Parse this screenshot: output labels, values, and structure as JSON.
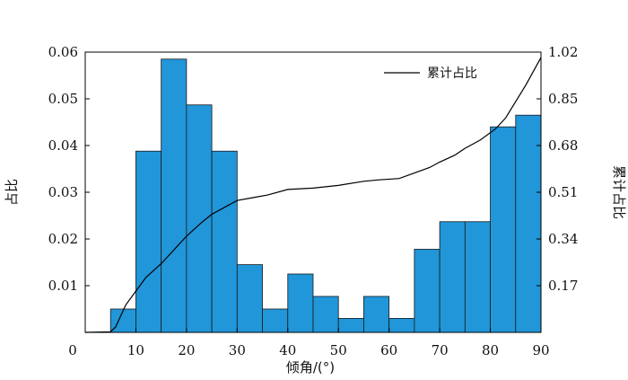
{
  "chart_data": {
    "type": "bar",
    "xlabel": "倾角/(°)",
    "ylabel": "占比",
    "y2label": "累计占比",
    "xlim": [
      0,
      90
    ],
    "ylim": [
      0,
      0.06
    ],
    "y2lim": [
      0,
      1.02
    ],
    "x_ticks": [
      "0",
      "10",
      "20",
      "30",
      "40",
      "50",
      "60",
      "70",
      "80",
      "90"
    ],
    "y_ticks": [
      "0.01",
      "0.02",
      "0.03",
      "0.04",
      "0.05",
      "0.06"
    ],
    "y2_ticks": [
      "0.17",
      "0.34",
      "0.51",
      "0.68",
      "0.85",
      "1.02"
    ],
    "bar_width": 5,
    "bar_color": "#2196d9",
    "line_color": "#000000",
    "legend_position": "top-right",
    "bars": [
      {
        "x_start": 5,
        "value": 0.005
      },
      {
        "x_start": 10,
        "value": 0.0388
      },
      {
        "x_start": 15,
        "value": 0.0585
      },
      {
        "x_start": 20,
        "value": 0.0487
      },
      {
        "x_start": 25,
        "value": 0.0388
      },
      {
        "x_start": 30,
        "value": 0.0145
      },
      {
        "x_start": 35,
        "value": 0.005
      },
      {
        "x_start": 40,
        "value": 0.0125
      },
      {
        "x_start": 45,
        "value": 0.0077
      },
      {
        "x_start": 50,
        "value": 0.003
      },
      {
        "x_start": 55,
        "value": 0.0077
      },
      {
        "x_start": 60,
        "value": 0.003
      },
      {
        "x_start": 65,
        "value": 0.0178
      },
      {
        "x_start": 70,
        "value": 0.0237
      },
      {
        "x_start": 75,
        "value": 0.0237
      },
      {
        "x_start": 80,
        "value": 0.044
      },
      {
        "x_start": 85,
        "value": 0.0465
      }
    ],
    "series": [
      {
        "name": "累计占比",
        "x": [
          0,
          5,
          6,
          8,
          10,
          12,
          15,
          18,
          20,
          23,
          25,
          28,
          30,
          33,
          36,
          40,
          45,
          50,
          55,
          58,
          62,
          65,
          68,
          70,
          73,
          75,
          78,
          81,
          83,
          85,
          87,
          90
        ],
        "y": [
          0,
          0.002,
          0.02,
          0.1,
          0.15,
          0.2,
          0.25,
          0.31,
          0.35,
          0.4,
          0.43,
          0.46,
          0.48,
          0.49,
          0.5,
          0.52,
          0.525,
          0.535,
          0.55,
          0.555,
          0.56,
          0.58,
          0.6,
          0.62,
          0.645,
          0.67,
          0.7,
          0.74,
          0.78,
          0.84,
          0.9,
          1.0
        ]
      }
    ]
  }
}
